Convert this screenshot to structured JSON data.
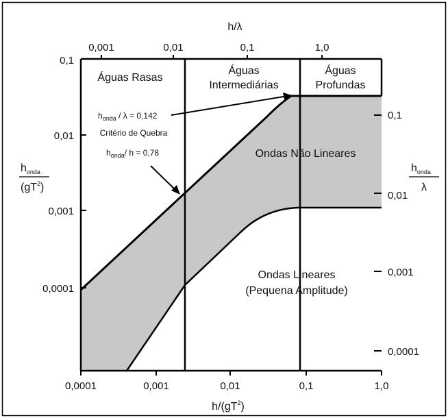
{
  "top_axis": {
    "label": "h/λ",
    "ticks": [
      "0,001",
      "0,01",
      "0,1",
      "1,0"
    ]
  },
  "bottom_axis": {
    "label_main": "h/(gT",
    "label_sup": "2",
    "label_end": ")",
    "ticks": [
      "0,0001",
      "0,001",
      "0,01",
      "0,1",
      "1,0"
    ]
  },
  "left_axis": {
    "label_num": "h",
    "label_num_sub": "onda",
    "label_den": "(gT",
    "label_den_sup": "2",
    "label_den_end": ")",
    "ticks": [
      "0,1",
      "0,01",
      "0,001",
      "0,0001"
    ]
  },
  "right_axis": {
    "label_num": "h",
    "label_num_sub": "onda",
    "label_den": "λ",
    "ticks": [
      "0,1",
      "0,01",
      "0,001",
      "0,0001"
    ]
  },
  "regions": {
    "shallow": "Águas Rasas",
    "intermediate_1": "Águas",
    "intermediate_2": "Intermediárias",
    "deep_1": "Águas",
    "deep_2": "Profundas",
    "nonlinear": "Ondas Não Lineares",
    "linear_1": "Ondas Lineares",
    "linear_2": "(Pequena Amplitude)"
  },
  "annotations": {
    "steepness_h": "h",
    "steepness_sub": "onda",
    "steepness_rest": " / λ = 0,142",
    "criterion": "Critério de Quebra",
    "breaking_h": "h",
    "breaking_sub": "onda",
    "breaking_rest": "/ h = 0,78"
  },
  "colors": {
    "band_fill": "#c8c8c8",
    "line": "#000000",
    "background": "#ffffff"
  }
}
